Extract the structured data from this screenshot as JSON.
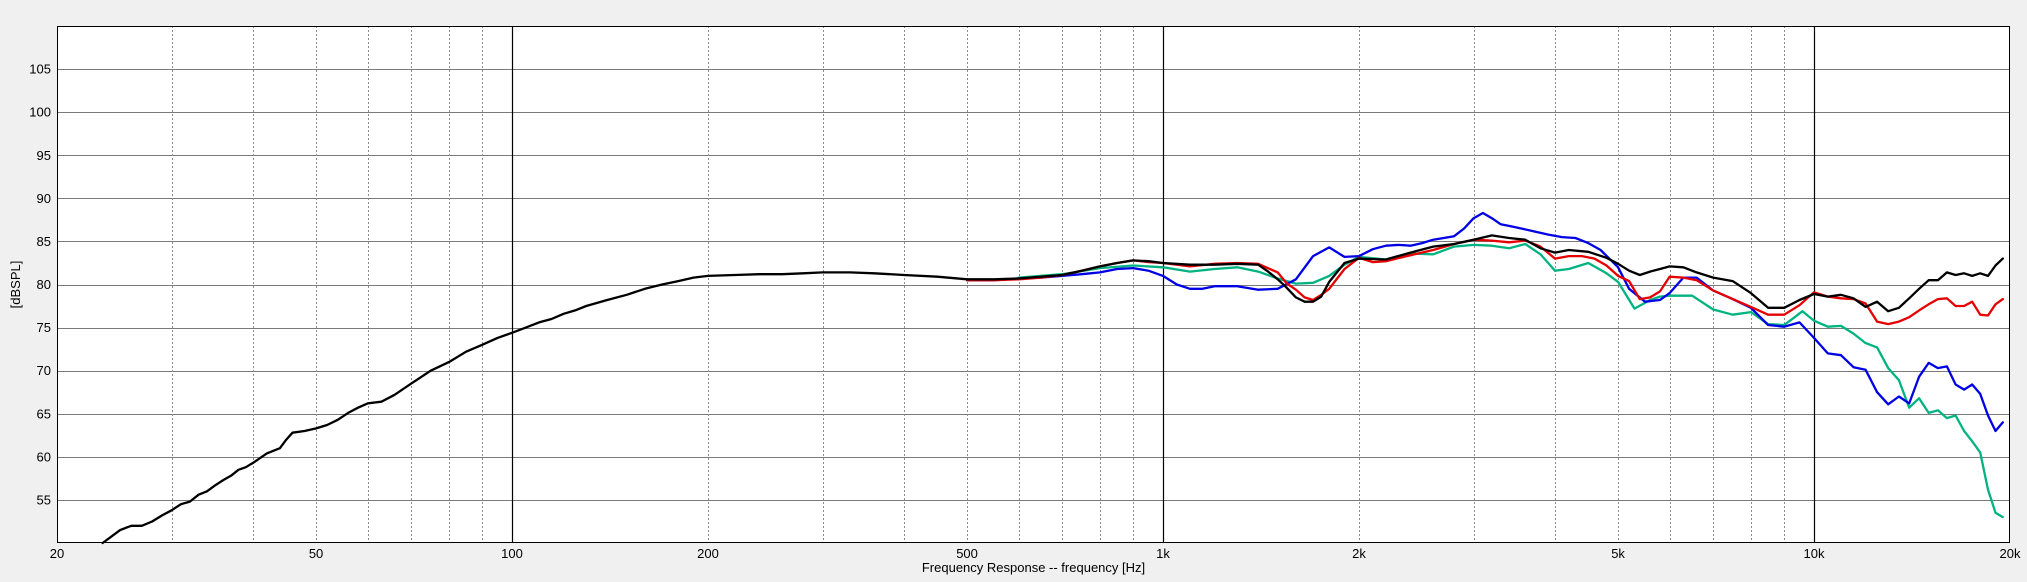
{
  "chart_data": {
    "type": "line",
    "title": "",
    "xlabel": "Frequency Response -- frequency [Hz]",
    "ylabel": "[dBSPL]",
    "x_scale": "log",
    "xlim": [
      20,
      20000
    ],
    "ylim": [
      50,
      110
    ],
    "x_ticks": [
      {
        "value": 20,
        "label": "20"
      },
      {
        "value": 50,
        "label": "50"
      },
      {
        "value": 100,
        "label": "100"
      },
      {
        "value": 200,
        "label": "200"
      },
      {
        "value": 500,
        "label": "500"
      },
      {
        "value": 1000,
        "label": "1k"
      },
      {
        "value": 2000,
        "label": "2k"
      },
      {
        "value": 5000,
        "label": "5k"
      },
      {
        "value": 10000,
        "label": "10k"
      },
      {
        "value": 20000,
        "label": "20k"
      }
    ],
    "y_ticks": [
      55,
      60,
      65,
      70,
      75,
      80,
      85,
      90,
      95,
      100,
      105
    ],
    "grid": true,
    "colors": {
      "background": "#f0f0f0",
      "plot_background": "#ffffff",
      "major_grid": "#000000",
      "minor_grid": "#8c8c8c",
      "h_grid": "#7a7a7a"
    },
    "series": [
      {
        "color": "#00b380",
        "x": [
          600,
          700,
          800,
          900,
          1000,
          1100,
          1200,
          1300,
          1400,
          1500,
          1600,
          1700,
          1800,
          1900,
          2000,
          2200,
          2400,
          2600,
          2800,
          3000,
          3200,
          3400,
          3600,
          3800,
          4000,
          4200,
          4500,
          4800,
          5000,
          5300,
          5600,
          5800,
          6000,
          6500,
          7000,
          7500,
          8000,
          8500,
          9000,
          9300,
          9600,
          10000,
          10500,
          11000,
          11500,
          12000,
          12500,
          13000,
          13500,
          14000,
          14500,
          15000,
          15500,
          16000,
          16500,
          17000,
          17500,
          18000,
          18500,
          19000,
          19500
        ],
        "y": [
          80.8,
          81.2,
          81.9,
          82.2,
          82.0,
          81.5,
          81.8,
          82.0,
          81.5,
          80.7,
          80.1,
          80.2,
          81.0,
          82.3,
          83.2,
          82.9,
          83.6,
          83.5,
          84.4,
          84.6,
          84.5,
          84.2,
          84.7,
          83.5,
          81.6,
          81.8,
          82.5,
          81.3,
          80.3,
          77.2,
          78.2,
          78.6,
          78.7,
          78.7,
          77.1,
          76.5,
          76.8,
          75.4,
          75.3,
          76.1,
          76.9,
          75.8,
          75.1,
          75.2,
          74.3,
          73.2,
          72.7,
          70.3,
          68.9,
          65.7,
          66.8,
          65.1,
          65.4,
          64.5,
          64.8,
          63.0,
          61.8,
          60.5,
          56.2,
          53.5,
          53.0
        ]
      },
      {
        "color": "#0000e6",
        "x": [
          500,
          550,
          600,
          650,
          700,
          750,
          800,
          850,
          900,
          950,
          1000,
          1050,
          1100,
          1150,
          1200,
          1300,
          1400,
          1500,
          1600,
          1700,
          1800,
          1900,
          2000,
          2100,
          2200,
          2300,
          2400,
          2500,
          2600,
          2700,
          2800,
          2900,
          3000,
          3100,
          3200,
          3300,
          3400,
          3500,
          3700,
          3900,
          4100,
          4300,
          4500,
          4700,
          5000,
          5200,
          5500,
          5800,
          6000,
          6300,
          6600,
          7000,
          7500,
          8000,
          8500,
          9000,
          9500,
          10000,
          10500,
          11000,
          11500,
          12000,
          12500,
          13000,
          13500,
          14000,
          14500,
          15000,
          15500,
          16000,
          16500,
          17000,
          17500,
          18000,
          18500,
          19000,
          19500
        ],
        "y": [
          80.5,
          80.5,
          80.7,
          80.8,
          81.0,
          81.2,
          81.4,
          81.8,
          81.9,
          81.6,
          81.0,
          80.0,
          79.5,
          79.5,
          79.8,
          79.8,
          79.4,
          79.5,
          80.6,
          83.3,
          84.3,
          83.2,
          83.3,
          84.1,
          84.5,
          84.6,
          84.5,
          84.8,
          85.2,
          85.4,
          85.6,
          86.5,
          87.7,
          88.3,
          87.7,
          87.0,
          86.8,
          86.6,
          86.2,
          85.8,
          85.5,
          85.4,
          84.8,
          84.0,
          82.0,
          79.5,
          78.0,
          78.2,
          79.0,
          80.8,
          80.8,
          79.3,
          78.3,
          77.3,
          75.3,
          75.1,
          75.6,
          73.8,
          72.0,
          71.8,
          70.4,
          70.1,
          67.5,
          66.1,
          67.0,
          66.2,
          69.3,
          70.9,
          70.3,
          70.5,
          68.4,
          67.8,
          68.4,
          67.3,
          64.8,
          63.0,
          64.0
        ]
      },
      {
        "color": "#e60000",
        "x": [
          500,
          550,
          600,
          650,
          700,
          750,
          800,
          850,
          900,
          950,
          1000,
          1100,
          1200,
          1300,
          1400,
          1500,
          1550,
          1600,
          1650,
          1700,
          1750,
          1800,
          1900,
          2000,
          2100,
          2200,
          2400,
          2600,
          2800,
          3000,
          3200,
          3400,
          3600,
          3800,
          4000,
          4200,
          4400,
          4600,
          4800,
          5000,
          5200,
          5400,
          5600,
          5800,
          6000,
          6300,
          6600,
          7000,
          7500,
          8000,
          8500,
          9000,
          9500,
          10000,
          10500,
          11000,
          11500,
          12000,
          12500,
          13000,
          13500,
          14000,
          14500,
          15000,
          15500,
          16000,
          16500,
          17000,
          17500,
          18000,
          18500,
          19000,
          19500
        ],
        "y": [
          80.5,
          80.5,
          80.6,
          80.8,
          81.1,
          81.6,
          82.1,
          82.5,
          82.8,
          82.6,
          82.5,
          82.1,
          82.4,
          82.5,
          82.4,
          81.4,
          80.1,
          79.4,
          78.5,
          78.2,
          78.8,
          79.5,
          81.8,
          83.1,
          82.6,
          82.7,
          83.4,
          84.0,
          84.7,
          85.2,
          85.1,
          84.9,
          85.1,
          84.4,
          83.0,
          83.3,
          83.3,
          83.0,
          82.2,
          81.0,
          80.4,
          78.3,
          78.5,
          79.2,
          80.9,
          80.8,
          80.5,
          79.3,
          78.3,
          77.4,
          76.5,
          76.5,
          77.6,
          79.1,
          78.6,
          78.4,
          78.3,
          77.8,
          75.7,
          75.4,
          75.7,
          76.2,
          77.0,
          77.7,
          78.3,
          78.4,
          77.5,
          77.5,
          78.0,
          76.5,
          76.4,
          77.7,
          78.3
        ]
      },
      {
        "color": "#000000",
        "x": [
          23.5,
          24,
          25,
          26,
          27,
          28,
          29,
          30,
          31,
          32,
          33,
          34,
          35,
          36,
          37,
          38,
          39,
          40,
          42,
          44,
          45,
          46,
          48,
          50,
          52,
          54,
          56,
          58,
          60,
          63,
          66,
          70,
          75,
          80,
          85,
          90,
          95,
          100,
          105,
          110,
          115,
          120,
          125,
          130,
          140,
          150,
          160,
          170,
          180,
          190,
          200,
          220,
          240,
          260,
          280,
          300,
          330,
          360,
          400,
          450,
          500,
          550,
          600,
          650,
          700,
          750,
          800,
          850,
          900,
          950,
          1000,
          1100,
          1200,
          1300,
          1400,
          1450,
          1500,
          1550,
          1600,
          1650,
          1700,
          1750,
          1800,
          1900,
          2000,
          2200,
          2400,
          2600,
          2800,
          3000,
          3200,
          3400,
          3600,
          3800,
          4000,
          4200,
          4500,
          4800,
          5000,
          5200,
          5400,
          5600,
          5800,
          6000,
          6300,
          6600,
          7000,
          7500,
          8000,
          8500,
          9000,
          9500,
          10000,
          10500,
          11000,
          11500,
          12000,
          12500,
          13000,
          13500,
          14000,
          14500,
          15000,
          15500,
          16000,
          16500,
          17000,
          17500,
          18000,
          18500,
          19000,
          19500
        ],
        "y": [
          50.0,
          50.5,
          51.5,
          52.0,
          52.0,
          52.5,
          53.2,
          53.8,
          54.5,
          54.8,
          55.6,
          56.0,
          56.7,
          57.3,
          57.8,
          58.5,
          58.8,
          59.3,
          60.4,
          61.0,
          62.0,
          62.8,
          63.0,
          63.3,
          63.7,
          64.3,
          65.1,
          65.7,
          66.2,
          66.4,
          67.2,
          68.5,
          70.0,
          71.0,
          72.2,
          73.0,
          73.8,
          74.4,
          75.0,
          75.6,
          76.0,
          76.6,
          77.0,
          77.5,
          78.2,
          78.8,
          79.5,
          80.0,
          80.4,
          80.8,
          81.0,
          81.1,
          81.2,
          81.2,
          81.3,
          81.4,
          81.4,
          81.3,
          81.1,
          80.9,
          80.6,
          80.6,
          80.7,
          80.9,
          81.1,
          81.6,
          82.1,
          82.5,
          82.8,
          82.7,
          82.5,
          82.3,
          82.3,
          82.4,
          82.3,
          81.5,
          80.6,
          79.6,
          78.5,
          78.0,
          78.0,
          78.6,
          80.3,
          82.5,
          83.0,
          82.9,
          83.7,
          84.4,
          84.7,
          85.2,
          85.7,
          85.4,
          85.2,
          84.2,
          83.7,
          84.0,
          83.8,
          83.1,
          82.4,
          81.6,
          81.1,
          81.5,
          81.8,
          82.1,
          82.0,
          81.4,
          80.8,
          80.4,
          79.0,
          77.3,
          77.3,
          78.2,
          78.9,
          78.6,
          78.8,
          78.4,
          77.4,
          78.0,
          76.9,
          77.3,
          78.4,
          79.5,
          80.5,
          80.5,
          81.4,
          81.1,
          81.3,
          81.0,
          81.3,
          81.0,
          82.2,
          83.0
        ]
      }
    ]
  }
}
